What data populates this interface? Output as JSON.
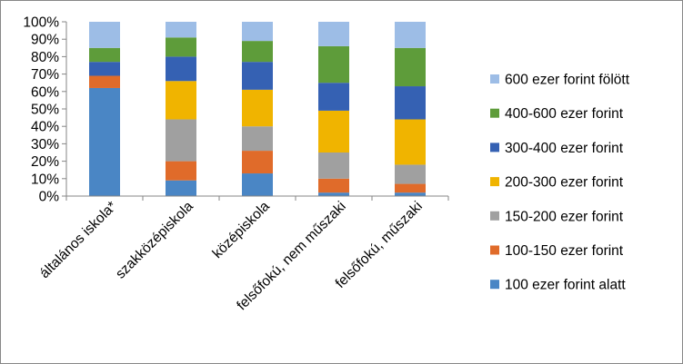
{
  "chart_data": {
    "type": "bar",
    "stacked": true,
    "percent": true,
    "title": "",
    "xlabel": "",
    "ylabel": "",
    "ylim": [
      0,
      100
    ],
    "yticks": [
      "0%",
      "10%",
      "20%",
      "30%",
      "40%",
      "50%",
      "60%",
      "70%",
      "80%",
      "90%",
      "100%"
    ],
    "grid": false,
    "legend_position": "right",
    "categories": [
      "általános iskola*",
      "szakközépiskola",
      "középiskola",
      "felsőfokú, nem műszaki",
      "felsőfokú, műszaki"
    ],
    "series": [
      {
        "name": "100 ezer forint alatt",
        "color": "#4a86c5",
        "values": [
          62,
          9,
          13,
          2,
          2
        ]
      },
      {
        "name": "100-150 ezer forint",
        "color": "#e06b2a",
        "values": [
          7,
          11,
          13,
          8,
          5
        ]
      },
      {
        "name": "150-200 ezer forint",
        "color": "#a0a0a0",
        "values": [
          0,
          24,
          14,
          15,
          11
        ]
      },
      {
        "name": "200-300 ezer forint",
        "color": "#f0b400",
        "values": [
          0,
          22,
          21,
          24,
          26
        ]
      },
      {
        "name": "300-400 ezer forint",
        "color": "#3561b3",
        "values": [
          8,
          14,
          16,
          16,
          19
        ]
      },
      {
        "name": "400-600 ezer forint",
        "color": "#5e9c3a",
        "values": [
          8,
          11,
          12,
          21,
          22
        ]
      },
      {
        "name": "600 ezer forint fölött",
        "color": "#9dbde6",
        "values": [
          15,
          9,
          11,
          14,
          15
        ]
      }
    ]
  }
}
